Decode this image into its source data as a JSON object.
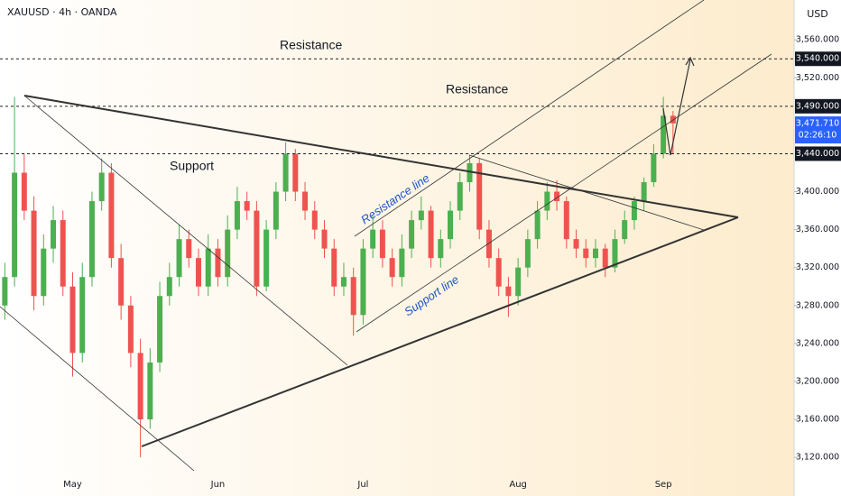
{
  "chart_data": {
    "type": "candlestick",
    "title": "XAUUSD · 4h · OANDA",
    "y_axis_label": "USD",
    "categories": [
      null,
      null,
      null,
      null,
      null,
      null,
      null,
      "May",
      null,
      null,
      null,
      null,
      null,
      null,
      null,
      null,
      null,
      null,
      null,
      null,
      null,
      null,
      "Jun",
      null,
      null,
      null,
      null,
      null,
      null,
      null,
      null,
      null,
      null,
      null,
      null,
      null,
      null,
      "Jul",
      null,
      null,
      null,
      null,
      null,
      null,
      null,
      null,
      null,
      null,
      null,
      null,
      null,
      null,
      null,
      "Aug",
      null,
      null,
      null,
      null,
      null,
      null,
      null,
      null,
      null,
      null,
      null,
      null,
      null,
      null,
      "Sep",
      null,
      null,
      null,
      null,
      null,
      null,
      null,
      null,
      null,
      null,
      null,
      null,
      null
    ],
    "open": [
      3280,
      3310,
      3420,
      3380,
      3290,
      3340,
      3370,
      3300,
      3230,
      3310,
      3390,
      3420,
      3330,
      3280,
      3230,
      3160,
      3220,
      3290,
      3310,
      3350,
      3330,
      3300,
      3340,
      3310,
      3360,
      3390,
      3380,
      3300,
      3360,
      3400,
      3440,
      3400,
      3380,
      3360,
      3340,
      3300,
      3310,
      3270,
      3340,
      3360,
      3330,
      3310,
      3340,
      3370,
      3380,
      3330,
      3350,
      3380,
      3410,
      3430,
      3360,
      3330,
      3300,
      3290,
      3320,
      3350,
      3380,
      3400,
      3390,
      3350,
      3340,
      3330,
      3340,
      3320,
      3350,
      3370,
      3390,
      3410,
      3440,
      3480,
      null,
      null,
      null,
      null,
      null,
      null,
      null,
      null,
      null,
      null,
      null,
      null
    ],
    "high": [
      3325,
      3500,
      3440,
      3395,
      3355,
      3385,
      3380,
      3315,
      3325,
      3400,
      3435,
      3430,
      3345,
      3290,
      3245,
      3235,
      3305,
      3325,
      3365,
      3360,
      3340,
      3355,
      3350,
      3375,
      3405,
      3400,
      3390,
      3370,
      3410,
      3452,
      3445,
      3410,
      3390,
      3370,
      3350,
      3325,
      3320,
      3350,
      3375,
      3370,
      3340,
      3355,
      3380,
      3395,
      3385,
      3360,
      3390,
      3420,
      3439,
      3435,
      3370,
      3340,
      3310,
      3330,
      3360,
      3390,
      3410,
      3412,
      3395,
      3360,
      3350,
      3350,
      3345,
      3360,
      3380,
      3395,
      3415,
      3450,
      3500,
      3485,
      null,
      null,
      null,
      null,
      null,
      null,
      null,
      null,
      null,
      null,
      null,
      null
    ],
    "low": [
      3265,
      3300,
      3370,
      3275,
      3280,
      3325,
      3290,
      3205,
      3220,
      3300,
      3380,
      3320,
      3265,
      3215,
      3120,
      3150,
      3210,
      3280,
      3300,
      3320,
      3290,
      3290,
      3300,
      3300,
      3350,
      3370,
      3290,
      3295,
      3350,
      3390,
      3390,
      3370,
      3350,
      3330,
      3290,
      3290,
      3248,
      3260,
      3330,
      3320,
      3300,
      3300,
      3330,
      3360,
      3320,
      3320,
      3340,
      3370,
      3400,
      3350,
      3320,
      3290,
      3268,
      3280,
      3310,
      3340,
      3370,
      3380,
      3340,
      3330,
      3320,
      3320,
      3310,
      3315,
      3345,
      3360,
      3380,
      3405,
      3435,
      3440,
      null,
      null,
      null,
      null,
      null,
      null,
      null,
      null,
      null,
      null,
      null,
      null
    ],
    "close": [
      3310,
      3420,
      3380,
      3290,
      3340,
      3370,
      3300,
      3230,
      3310,
      3390,
      3420,
      3330,
      3280,
      3230,
      3160,
      3220,
      3290,
      3310,
      3350,
      3330,
      3300,
      3340,
      3310,
      3360,
      3390,
      3380,
      3300,
      3360,
      3400,
      3440,
      3400,
      3380,
      3360,
      3340,
      3300,
      3310,
      3270,
      3340,
      3360,
      3330,
      3310,
      3340,
      3370,
      3380,
      3330,
      3350,
      3380,
      3410,
      3430,
      3360,
      3330,
      3300,
      3290,
      3320,
      3350,
      3380,
      3400,
      3390,
      3350,
      3340,
      3330,
      3340,
      3320,
      3350,
      3370,
      3390,
      3410,
      3440,
      3480,
      3472,
      null,
      null,
      null,
      null,
      null,
      null,
      null,
      null,
      null,
      null,
      null,
      null
    ],
    "up_color": "#4caf50",
    "down_color": "#ef5350",
    "ylim": [
      3103,
      3602
    ],
    "yticks": [
      {
        "value": 3120,
        "label": "3,120.000"
      },
      {
        "value": 3160,
        "label": "3,160.000"
      },
      {
        "value": 3200,
        "label": "3,200.000"
      },
      {
        "value": 3240,
        "label": "3,240.000"
      },
      {
        "value": 3280,
        "label": "3,280.000"
      },
      {
        "value": 3320,
        "label": "3,320.000"
      },
      {
        "value": 3360,
        "label": "3,360.000"
      },
      {
        "value": 3400,
        "label": "3,400.000"
      },
      {
        "value": 3520,
        "label": "3,520.000"
      },
      {
        "value": 3560,
        "label": "3,560.000"
      }
    ],
    "levels": [
      {
        "value": 3540,
        "label": "3,540.000"
      },
      {
        "value": 3490,
        "label": "3,490.000"
      },
      {
        "value": 3440,
        "label": "3,440.000"
      }
    ],
    "current_price": {
      "value": 3471.71,
      "label": "3,471.710"
    },
    "countdown": "02:26:10",
    "annotations": [
      "Resistance",
      "Resistance",
      "Support",
      "Resistance line",
      "Support line"
    ]
  }
}
